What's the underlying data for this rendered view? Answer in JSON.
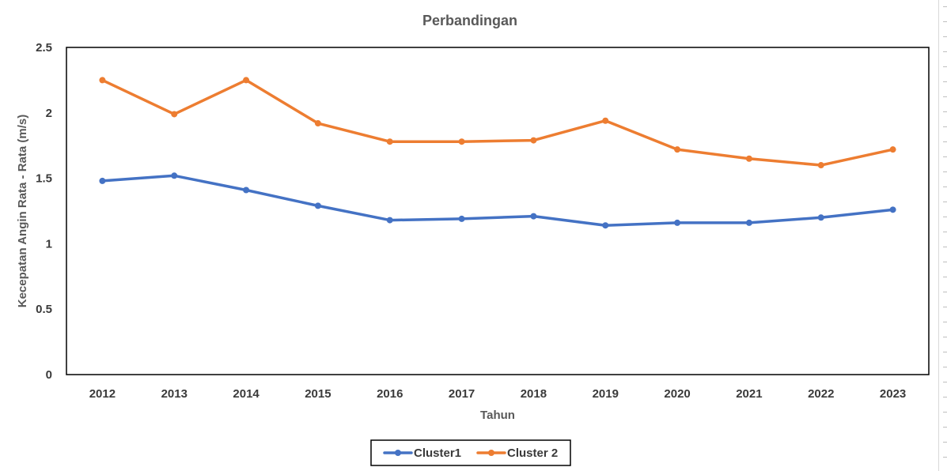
{
  "chart_data": {
    "type": "line",
    "title": "Perbandingan",
    "xlabel": "Tahun",
    "ylabel": "Kecepatan Angin Rata - Rata (m/s)",
    "categories": [
      "2012",
      "2013",
      "2014",
      "2015",
      "2016",
      "2017",
      "2018",
      "2019",
      "2020",
      "2021",
      "2022",
      "2023"
    ],
    "ylim": [
      0,
      2.5
    ],
    "yticks": [
      "0",
      "0.5",
      "1",
      "1.5",
      "2",
      "2.5"
    ],
    "grid": false,
    "legend_position": "bottom",
    "series": [
      {
        "name": "Cluster1",
        "color": "#4472C4",
        "values": [
          1.48,
          1.52,
          1.41,
          1.29,
          1.18,
          1.19,
          1.21,
          1.14,
          1.16,
          1.16,
          1.2,
          1.26
        ]
      },
      {
        "name": "Cluster 2",
        "color": "#ED7D31",
        "values": [
          2.25,
          1.99,
          2.25,
          1.92,
          1.78,
          1.78,
          1.79,
          1.94,
          1.72,
          1.65,
          1.6,
          1.72
        ]
      }
    ]
  }
}
